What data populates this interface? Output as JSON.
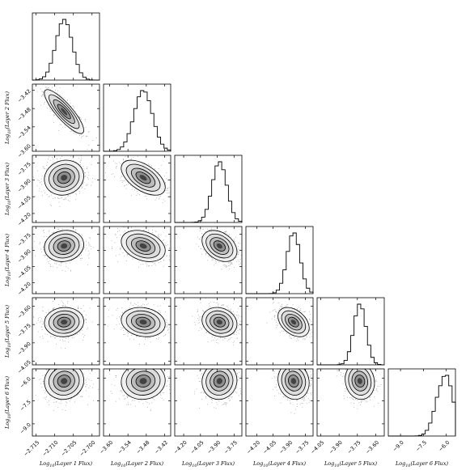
{
  "chart_data": {
    "type": "corner",
    "variables": [
      {
        "label": "Log10(Layer 1 Flux)",
        "sub_label": "10",
        "label_parts": [
          "Log",
          "(Layer 1 Flux)"
        ],
        "range": [
          -2.716,
          -2.698
        ],
        "mean": -2.7075,
        "sd": 0.0022,
        "ticks": [
          -2.715,
          -2.71,
          -2.705,
          -2.7
        ],
        "tick_labels": [
          "−2.715",
          "−2.710",
          "−2.705",
          "−2.700"
        ]
      },
      {
        "label": "Log10(Layer 2 Flux)",
        "label_parts": [
          "Log",
          "(Layer 2 Flux)"
        ],
        "range": [
          -3.62,
          -3.4
        ],
        "mean": -3.49,
        "sd": 0.03,
        "ticks": [
          -3.6,
          -3.54,
          -3.48,
          -3.42
        ],
        "tick_labels": [
          "−3.60",
          "−3.54",
          "−3.48",
          "−3.42"
        ]
      },
      {
        "label": "Log10(Layer 3 Flux)",
        "label_parts": [
          "Log",
          "(Layer 3 Flux)"
        ],
        "range": [
          -4.28,
          -3.68
        ],
        "mean": -3.88,
        "sd": 0.065,
        "ticks": [
          -4.2,
          -4.05,
          -3.9,
          -3.75
        ],
        "tick_labels": [
          "−4.20",
          "−4.05",
          "−3.90",
          "−3.75"
        ]
      },
      {
        "label": "Log10(Layer 4 Flux)",
        "label_parts": [
          "Log",
          "(Layer 4 Flux)"
        ],
        "range": [
          -4.3,
          -3.68
        ],
        "mean": -3.86,
        "sd": 0.06,
        "ticks": [
          -4.2,
          -4.05,
          -3.9,
          -3.75
        ],
        "tick_labels": [
          "−4.20",
          "−4.05",
          "−3.90",
          "−3.75"
        ]
      },
      {
        "label": "Log10(Layer 5 Flux)",
        "label_parts": [
          "Log",
          "(Layer 5 Flux)"
        ],
        "range": [
          -4.08,
          -3.53
        ],
        "mean": -3.73,
        "sd": 0.05,
        "ticks": [
          -4.05,
          -3.9,
          -3.75,
          -3.6
        ],
        "tick_labels": [
          "−4.05",
          "−3.90",
          "−3.75",
          "−3.60"
        ]
      },
      {
        "label": "Log10(Layer 6 Flux)",
        "label_parts": [
          "Log",
          "(Layer 6 Flux)"
        ],
        "range": [
          -9.8,
          -5.4
        ],
        "mean": -6.2,
        "sd": 0.5,
        "ticks": [
          -9,
          -7.5,
          -6
        ],
        "tick_labels": [
          "−9.0",
          "−7.5",
          "−6.0"
        ]
      }
    ],
    "correlations": [
      [
        1,
        -0.85,
        0.1,
        0.1,
        0.05,
        0.05
      ],
      [
        -0.85,
        1,
        -0.55,
        -0.3,
        -0.15,
        0.05
      ],
      [
        0.1,
        -0.55,
        1,
        -0.35,
        -0.15,
        0.05
      ],
      [
        0.1,
        -0.3,
        -0.35,
        1,
        -0.4,
        -0.1
      ],
      [
        0.05,
        -0.15,
        -0.15,
        -0.4,
        1,
        -0.1
      ],
      [
        0.05,
        0.05,
        0.05,
        -0.1,
        -0.1,
        1
      ]
    ],
    "grid": false,
    "histogram_bins": 20
  }
}
